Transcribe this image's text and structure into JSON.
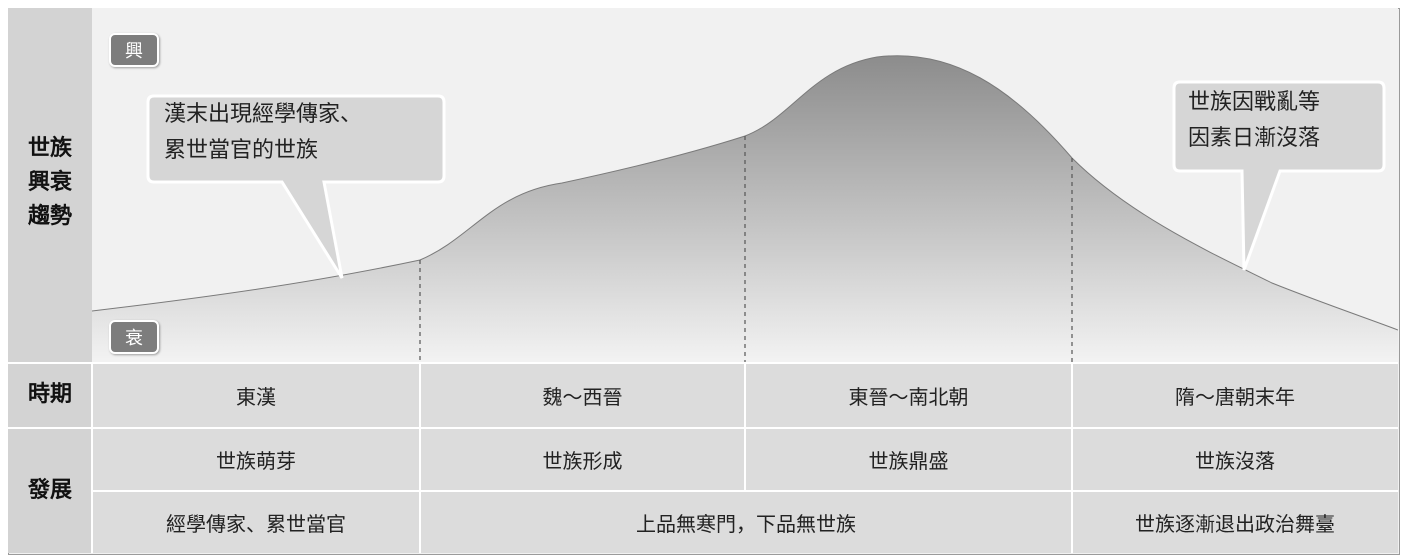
{
  "side_labels": {
    "trend": "世族興衰趨勢",
    "period": "時期",
    "development": "發展"
  },
  "axis": {
    "high": "興",
    "low": "衰"
  },
  "callouts": {
    "left": [
      "漢末出現經學傳家、",
      "累世當官的世族"
    ],
    "right": [
      "世族因戰亂等",
      "因素日漸沒落"
    ]
  },
  "periods": [
    "東漢",
    "魏～西晉",
    "東晉～南北朝",
    "隋～唐朝末年"
  ],
  "stages": [
    "世族萌芽",
    "世族形成",
    "世族鼎盛",
    "世族沒落"
  ],
  "details": [
    "經學傳家、累世當官",
    "上品無寒門，下品無世族",
    "世族逐漸退出政治舞臺"
  ],
  "colors": {
    "cell_bg": "#dcdcdc",
    "label_bg": "#d3d3d3",
    "tag_bg": "#7d7d7d",
    "curve_top": "#8a8a8a"
  }
}
